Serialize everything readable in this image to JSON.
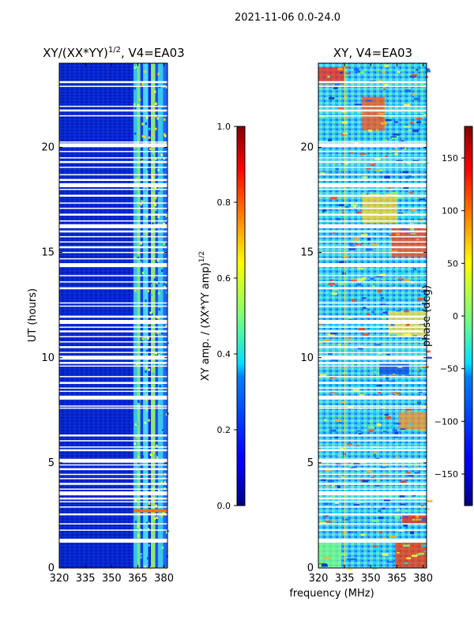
{
  "page": {
    "suptitle": "2021-11-06 0.0-24.0",
    "shared_xlabel": "frequency (MHz)"
  },
  "chart_data": [
    {
      "type": "heatmap",
      "title": "XY/(XX*YY)^1/2, V4=EA03",
      "title_base": "XY/(XX*YY)",
      "title_sup": "1/2",
      "title_tail": ", V4=EA03",
      "xlabel": "",
      "ylabel": "UT (hours)",
      "xlim": [
        320,
        382
      ],
      "ylim": [
        0,
        24
      ],
      "xticks": [
        "320",
        "335",
        "350",
        "365",
        "380"
      ],
      "xtick_values": [
        320,
        335,
        350,
        365,
        380
      ],
      "yticks": [
        "0",
        "5",
        "10",
        "15",
        "20"
      ],
      "ytick_values": [
        0,
        5,
        10,
        15,
        20
      ],
      "colorbar": {
        "label": "XY amp. / (XX*YY amp)^1/2",
        "label_base": "XY amp. / (XX*YY amp)",
        "label_sup": "1/2",
        "range": [
          0.0,
          1.0
        ],
        "ticks": [
          "0.0",
          "0.2",
          "0.4",
          "0.6",
          "0.8",
          "1.0"
        ],
        "tick_values": [
          0.0,
          0.2,
          0.4,
          0.6,
          0.8,
          1.0
        ],
        "colormap": "jet"
      },
      "description": "Low normalized amplitude (~0.05) below 360 MHz; elevated values (0.3-0.6) in bands between 360 and 382 MHz"
    },
    {
      "type": "heatmap",
      "title": "XY, V4=EA03",
      "xlabel": "",
      "ylabel": "",
      "xlim": [
        320,
        382
      ],
      "ylim": [
        0,
        24
      ],
      "xticks": [
        "320",
        "335",
        "350",
        "365",
        "380"
      ],
      "xtick_values": [
        320,
        335,
        350,
        365,
        380
      ],
      "yticks": [
        "0",
        "5",
        "10",
        "15",
        "20"
      ],
      "ytick_values": [
        0,
        5,
        10,
        15,
        20
      ],
      "colorbar": {
        "label": "phase (deg)",
        "range": [
          -180,
          180
        ],
        "ticks": [
          "−150",
          "−100",
          "−50",
          "0",
          "50",
          "100",
          "150"
        ],
        "tick_values": [
          -150,
          -100,
          -50,
          0,
          50,
          100,
          150
        ],
        "colormap": "jet"
      },
      "description": "Phase scattered mostly between -50 and 50 degrees with banded structure; strong positive phase near 0-2 UT at 365-382 MHz"
    }
  ],
  "flagged_rows_hours": [
    1.3,
    1.8,
    2.1,
    2.55,
    2.9,
    3.15,
    3.3,
    3.55,
    3.75,
    4.0,
    4.25,
    4.45,
    4.7,
    4.9,
    5.1,
    5.6,
    5.75,
    6.05,
    6.3,
    7.6,
    7.7,
    8.1,
    8.4,
    8.55,
    8.8,
    9.1,
    9.6,
    9.75,
    10.0,
    10.25,
    10.5,
    10.75,
    11.0,
    11.25,
    11.45,
    11.7,
    11.95,
    12.45,
    12.6,
    13.3,
    13.6,
    13.9,
    14.4,
    14.7,
    15.0,
    15.25,
    15.5,
    15.75,
    16.0,
    16.25,
    16.5,
    16.8,
    17.1,
    17.35,
    17.7,
    18.0,
    18.2,
    18.45,
    18.7,
    19.05,
    19.3,
    19.5,
    19.8,
    20.1,
    20.25,
    21.5,
    21.75,
    21.95,
    22.9,
    23.1
  ]
}
